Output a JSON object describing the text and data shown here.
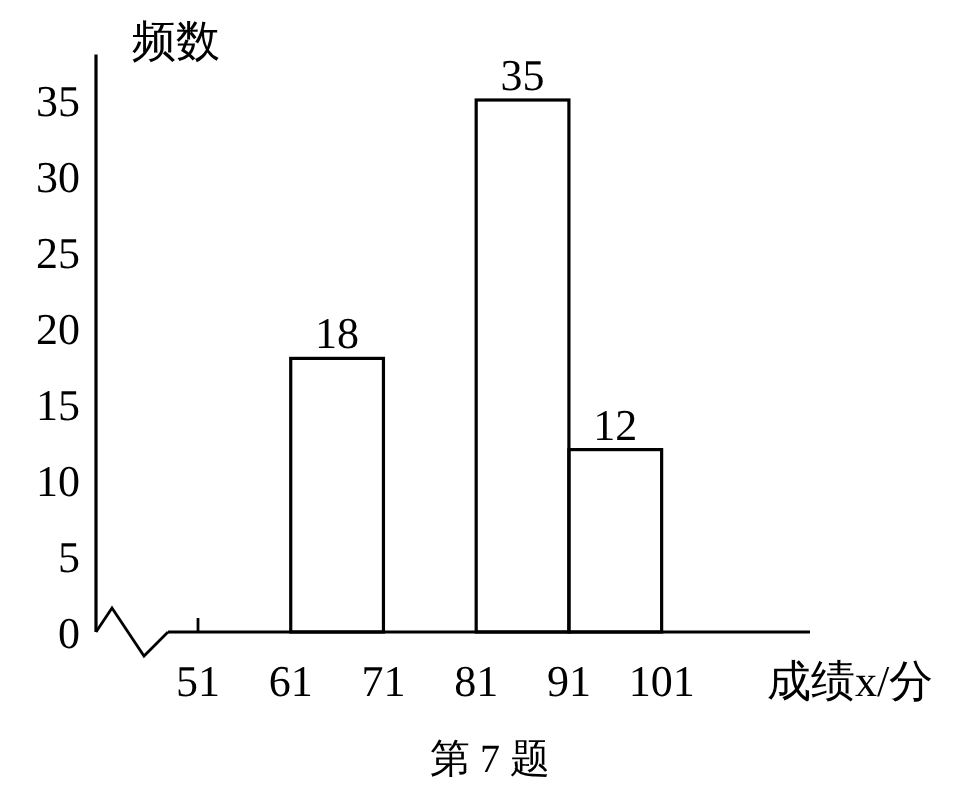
{
  "chart_data": {
    "type": "histogram",
    "bins": [
      51,
      61,
      71,
      81,
      91,
      101
    ],
    "values": [
      0,
      18,
      null,
      35,
      12
    ],
    "value_labels": [
      null,
      "18",
      null,
      "35",
      "12"
    ],
    "color": "#000000",
    "xlim": [
      40,
      117
    ],
    "ylim": [
      0,
      38
    ],
    "xticks": [
      51,
      61,
      71,
      81,
      91,
      101
    ],
    "yticks": [
      0,
      5,
      10,
      15,
      20,
      25,
      30,
      35
    ],
    "xlabel": "成绩x/分",
    "ylabel": "频数",
    "annotations": [
      "第 7 题"
    ],
    "grid": false
  }
}
